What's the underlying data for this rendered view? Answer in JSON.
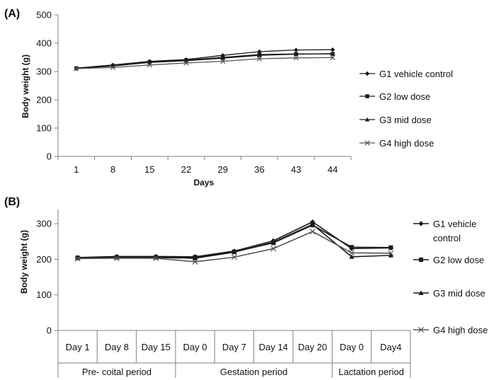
{
  "colors": {
    "line": "#1a1a1a",
    "axis": "#7f7f7f",
    "xseries": "#555555"
  },
  "chart_data": [
    {
      "panel_label": "(A)",
      "type": "line",
      "xlabel": "Days",
      "ylabel": "Body weight (g)",
      "ylim": [
        0,
        500
      ],
      "yticks": [
        0,
        100,
        200,
        300,
        400,
        500
      ],
      "categories": [
        "1",
        "8",
        "15",
        "22",
        "29",
        "36",
        "43",
        "44"
      ],
      "grid": false,
      "legend_position": "right",
      "series": [
        {
          "name": "G1 vehicle control",
          "marker": "diamond",
          "values": [
            312,
            323,
            336,
            342,
            357,
            370,
            376,
            377
          ]
        },
        {
          "name": "G2 low dose",
          "marker": "square",
          "values": [
            311,
            320,
            333,
            340,
            350,
            360,
            362,
            362
          ]
        },
        {
          "name": "G3 mid dose",
          "marker": "triangle",
          "values": [
            311,
            319,
            332,
            338,
            347,
            357,
            361,
            363
          ]
        },
        {
          "name": "G4 high dose",
          "marker": "x",
          "values": [
            310,
            314,
            323,
            330,
            336,
            345,
            348,
            349
          ]
        }
      ]
    },
    {
      "panel_label": "(B)",
      "type": "line",
      "xlabel": "",
      "ylabel": "Body weight (g)",
      "ylim": [
        0,
        340
      ],
      "yticks": [
        0,
        100,
        200,
        300
      ],
      "categories": [
        "Day 1",
        "Day 8",
        "Day 15",
        "Day 0",
        "Day 7",
        "Day 14",
        "Day 20",
        "Day 0",
        "Day4"
      ],
      "groups": [
        {
          "label": "Pre- coital period",
          "span": [
            0,
            2
          ]
        },
        {
          "label": "Gestation period",
          "span": [
            3,
            6
          ]
        },
        {
          "label": "Lactation period",
          "span": [
            7,
            8
          ]
        }
      ],
      "grid": false,
      "legend_position": "right",
      "series": [
        {
          "name": "G1 vehicle control",
          "marker": "diamond",
          "values": [
            205,
            208,
            208,
            207,
            223,
            252,
            305,
            230,
            232
          ]
        },
        {
          "name": "G2 low dose",
          "marker": "square",
          "values": [
            204,
            206,
            206,
            206,
            221,
            246,
            296,
            234,
            233
          ]
        },
        {
          "name": "G3 mid dose",
          "marker": "triangle",
          "values": [
            203,
            205,
            205,
            203,
            220,
            248,
            298,
            207,
            211
          ]
        },
        {
          "name": "G4 high dose",
          "marker": "x",
          "values": [
            202,
            203,
            203,
            193,
            206,
            230,
            278,
            218,
            217
          ]
        }
      ]
    }
  ]
}
